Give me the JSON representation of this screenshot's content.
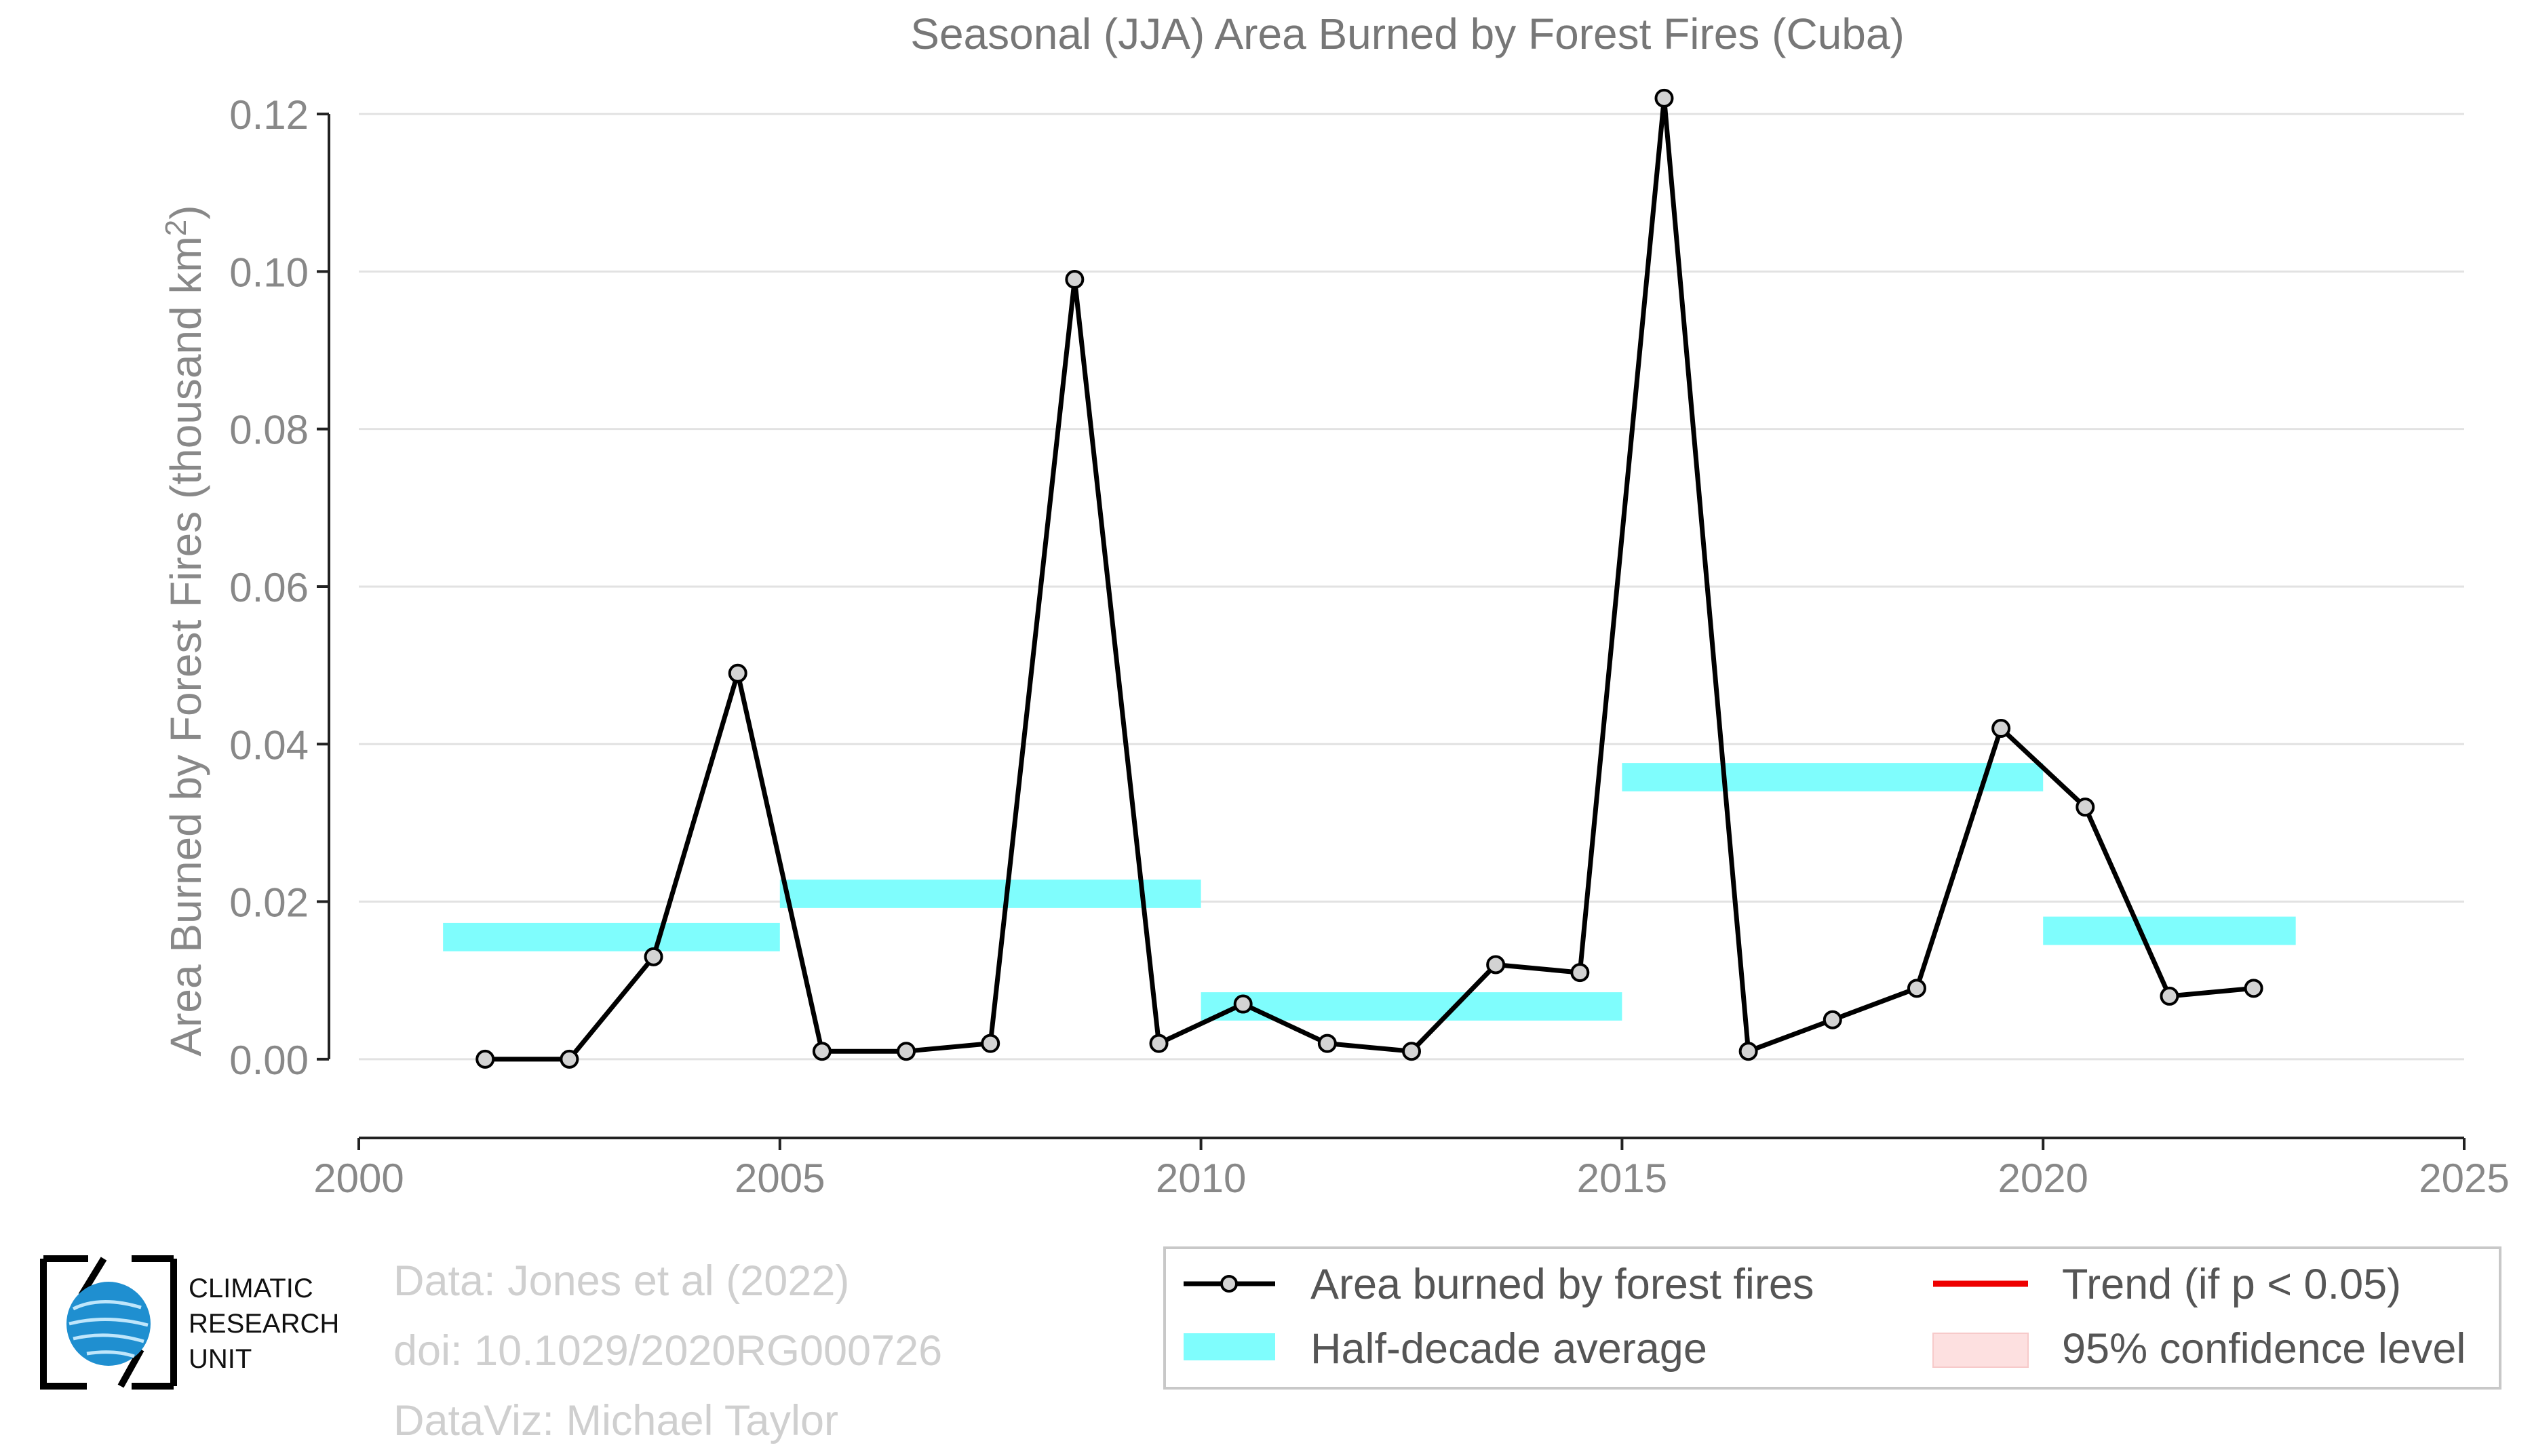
{
  "chart_data": {
    "type": "line",
    "title": "Seasonal (JJA) Area Burned by Forest Fires (Cuba)",
    "ylabel": "Area Burned by Forest Fires (thousand km",
    "ylabel_sup": "2",
    "ylabel_close": ")",
    "xlim": [
      2000,
      2025
    ],
    "ylim": [
      -0.01,
      0.125
    ],
    "x_ticks": [
      2000,
      2005,
      2010,
      2015,
      2020,
      2025
    ],
    "x_tick_labels": [
      "2000",
      "2005",
      "2010",
      "2015",
      "2020",
      "2025"
    ],
    "y_ticks": [
      0,
      0.02,
      0.04,
      0.06,
      0.08,
      0.1,
      0.12
    ],
    "y_tick_labels": [
      "0.00",
      "0.02",
      "0.04",
      "0.06",
      "0.08",
      "0.10",
      "0.12"
    ],
    "grid": "horizontal",
    "series": [
      {
        "name": "Area burned by forest fires",
        "color": "#000000",
        "marker_fill": "#d3d3d3",
        "x": [
          2001.5,
          2002.5,
          2003.5,
          2004.5,
          2005.5,
          2006.5,
          2007.5,
          2008.5,
          2009.5,
          2010.5,
          2011.5,
          2012.5,
          2013.5,
          2014.5,
          2015.5,
          2016.5,
          2017.5,
          2018.5,
          2019.5,
          2020.5,
          2021.5,
          2022.5
        ],
        "values": [
          0.0,
          0.0,
          0.013,
          0.049,
          0.001,
          0.001,
          0.002,
          0.099,
          0.002,
          0.007,
          0.002,
          0.001,
          0.012,
          0.011,
          0.122,
          0.001,
          0.005,
          0.009,
          0.042,
          0.032,
          0.008,
          0.009
        ]
      }
    ],
    "half_decade_average": {
      "name": "Half-decade average",
      "color": "#7ffdfd",
      "segments": [
        {
          "x0": 2001,
          "x1": 2005,
          "value": 0.0155
        },
        {
          "x0": 2005,
          "x1": 2010,
          "value": 0.021
        },
        {
          "x0": 2010,
          "x1": 2015,
          "value": 0.0067
        },
        {
          "x0": 2015,
          "x1": 2020,
          "value": 0.0358
        },
        {
          "x0": 2020,
          "x1": 2023,
          "value": 0.0163
        }
      ]
    },
    "legend": {
      "placement": "bottom-right",
      "entries": [
        {
          "label": "Area burned by forest fires",
          "type": "line-marker",
          "color": "#000000"
        },
        {
          "label": "Trend (if p < 0.05)",
          "type": "line",
          "color": "#ee0000"
        },
        {
          "label": "Half-decade average",
          "type": "band",
          "color": "#7ffdfd"
        },
        {
          "label": "95% confidence level",
          "type": "band",
          "color": "#fde0e0"
        }
      ]
    },
    "credits": [
      "Data: Jones et al (2022)",
      "doi: 10.1029/2020RG000726",
      "DataViz: Michael Taylor"
    ],
    "logo_text": [
      "CLIMATIC",
      "RESEARCH",
      "UNIT"
    ]
  }
}
